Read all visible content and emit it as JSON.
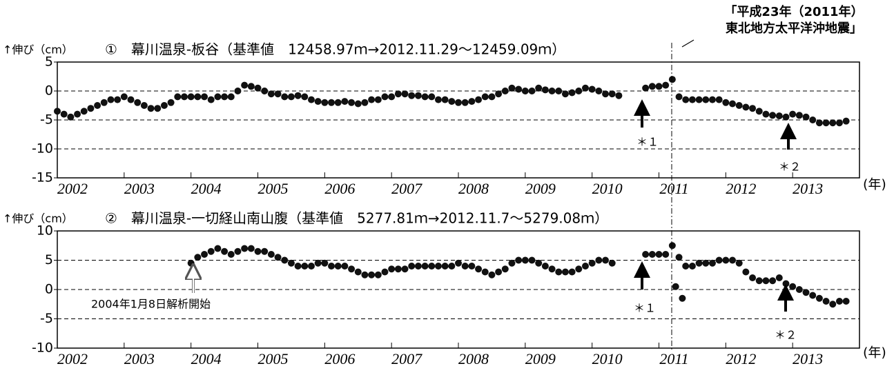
{
  "chart_data": [
    {
      "type": "scatter",
      "title": "①　幕川温泉-板谷（基準値　12458.97ｍ→2012.11.29～12459.09ｍ）",
      "y_label": "↑伸び（cm）",
      "x_label": "(年)",
      "annotations": [
        "＊１",
        "＊２",
        "「平成23年（2011年）",
        "東北地方太平洋沖地震」"
      ],
      "color": "#111111",
      "grid": true,
      "xlim": [
        2002,
        2014
      ],
      "ylim": [
        -15,
        5
      ],
      "xticks": [
        2002,
        2003,
        2004,
        2005,
        2006,
        2007,
        2008,
        2009,
        2010,
        2011,
        2012,
        2013
      ],
      "yticks": [
        -15,
        -10,
        -5,
        0,
        5
      ],
      "x": [
        2002.0,
        2002.1,
        2002.2,
        2002.3,
        2002.4,
        2002.5,
        2002.6,
        2002.7,
        2002.8,
        2002.9,
        2003.0,
        2003.1,
        2003.2,
        2003.3,
        2003.4,
        2003.5,
        2003.6,
        2003.7,
        2003.8,
        2003.9,
        2004.0,
        2004.1,
        2004.2,
        2004.3,
        2004.4,
        2004.5,
        2004.6,
        2004.7,
        2004.8,
        2004.9,
        2005.0,
        2005.1,
        2005.2,
        2005.3,
        2005.4,
        2005.5,
        2005.6,
        2005.7,
        2005.8,
        2005.9,
        2006.0,
        2006.1,
        2006.2,
        2006.3,
        2006.4,
        2006.5,
        2006.6,
        2006.7,
        2006.8,
        2006.9,
        2007.0,
        2007.1,
        2007.2,
        2007.3,
        2007.4,
        2007.5,
        2007.6,
        2007.7,
        2007.8,
        2007.9,
        2008.0,
        2008.1,
        2008.2,
        2008.3,
        2008.4,
        2008.5,
        2008.6,
        2008.7,
        2008.8,
        2008.9,
        2009.0,
        2009.1,
        2009.2,
        2009.3,
        2009.4,
        2009.5,
        2009.6,
        2009.7,
        2009.8,
        2009.9,
        2010.0,
        2010.1,
        2010.2,
        2010.3,
        2010.4,
        2010.8,
        2010.9,
        2011.0,
        2011.1,
        2011.2,
        2011.3,
        2011.4,
        2011.5,
        2011.6,
        2011.7,
        2011.8,
        2011.9,
        2012.0,
        2012.1,
        2012.2,
        2012.3,
        2012.4,
        2012.5,
        2012.6,
        2012.7,
        2012.8,
        2012.9,
        2013.0,
        2013.1,
        2013.2,
        2013.3,
        2013.4,
        2013.5,
        2013.6,
        2013.7,
        2013.8
      ],
      "values": [
        -3.5,
        -4,
        -4.5,
        -4,
        -3.5,
        -3,
        -2.5,
        -2,
        -1.5,
        -1.5,
        -1,
        -1.5,
        -2,
        -2.5,
        -3,
        -3,
        -2.5,
        -2,
        -1,
        -1,
        -1,
        -1,
        -1,
        -1.5,
        -1,
        -1,
        -1,
        0,
        1,
        0.8,
        0.5,
        0,
        -0.5,
        -0.5,
        -1,
        -1,
        -0.8,
        -1,
        -1.5,
        -1.8,
        -2,
        -2,
        -2,
        -1.8,
        -2,
        -2.2,
        -2,
        -1.5,
        -1.5,
        -1,
        -1,
        -0.5,
        -0.5,
        -0.8,
        -0.8,
        -1,
        -1,
        -1.5,
        -1.5,
        -1.8,
        -2,
        -2,
        -1.8,
        -1.5,
        -1,
        -1,
        -0.5,
        0,
        0.5,
        0.3,
        0,
        0,
        0.5,
        0.2,
        0,
        0,
        -0.5,
        -0.3,
        0,
        0.5,
        0.3,
        0,
        -0.5,
        -0.5,
        -0.8,
        0.5,
        0.8,
        0.8,
        1,
        2,
        -1,
        -1.5,
        -1.5,
        -1.5,
        -1.5,
        -1.5,
        -1.5,
        -2,
        -2.2,
        -2.5,
        -2.8,
        -3,
        -3.5,
        -4,
        -4.2,
        -4.3,
        -4.5,
        -4,
        -4.2,
        -4.5,
        -5,
        -5.5,
        -5.5,
        -5.5,
        -5.5,
        -5.2
      ]
    },
    {
      "type": "scatter",
      "title": "②　幕川温泉-一切経山南山腹（基準値　5277.81ｍ→2012.11.7～5279.08ｍ）",
      "y_label": "↑伸び（cm）",
      "x_label": "(年)",
      "annotations": [
        "＊１",
        "＊２",
        "2004年1月8日解析開始"
      ],
      "color": "#111111",
      "grid": true,
      "xlim": [
        2002,
        2014
      ],
      "ylim": [
        -10,
        10
      ],
      "xticks": [
        2002,
        2003,
        2004,
        2005,
        2006,
        2007,
        2008,
        2009,
        2010,
        2011,
        2012,
        2013
      ],
      "yticks": [
        -10,
        -5,
        0,
        5,
        10
      ],
      "x": [
        2004.0,
        2004.1,
        2004.2,
        2004.3,
        2004.4,
        2004.5,
        2004.6,
        2004.7,
        2004.8,
        2004.9,
        2005.0,
        2005.1,
        2005.2,
        2005.3,
        2005.4,
        2005.5,
        2005.6,
        2005.7,
        2005.8,
        2005.9,
        2006.0,
        2006.1,
        2006.2,
        2006.3,
        2006.4,
        2006.5,
        2006.6,
        2006.7,
        2006.8,
        2006.9,
        2007.0,
        2007.1,
        2007.2,
        2007.3,
        2007.4,
        2007.5,
        2007.6,
        2007.7,
        2007.8,
        2007.9,
        2008.0,
        2008.1,
        2008.2,
        2008.3,
        2008.4,
        2008.5,
        2008.6,
        2008.7,
        2008.8,
        2008.9,
        2009.0,
        2009.1,
        2009.2,
        2009.3,
        2009.4,
        2009.5,
        2009.6,
        2009.7,
        2009.8,
        2009.9,
        2010.0,
        2010.1,
        2010.2,
        2010.3,
        2010.8,
        2010.9,
        2011.0,
        2011.1,
        2011.2,
        2011.25,
        2011.3,
        2011.35,
        2011.4,
        2011.5,
        2011.6,
        2011.7,
        2011.8,
        2011.9,
        2012.0,
        2012.1,
        2012.2,
        2012.3,
        2012.4,
        2012.5,
        2012.6,
        2012.7,
        2012.8,
        2012.9,
        2013.0,
        2013.1,
        2013.2,
        2013.3,
        2013.4,
        2013.5,
        2013.6,
        2013.7,
        2013.8
      ],
      "values": [
        4.5,
        5.5,
        6,
        6.5,
        7,
        6.5,
        6,
        6.5,
        7,
        7,
        6.5,
        6.5,
        6,
        5.5,
        5,
        4.5,
        4,
        4,
        4,
        4.5,
        4.5,
        4,
        4,
        4,
        3.5,
        3,
        2.5,
        2.5,
        2.5,
        3,
        3.5,
        3.5,
        3.5,
        4,
        4,
        4,
        4,
        4,
        4,
        4,
        4.5,
        4,
        4,
        3.5,
        3,
        2.5,
        3,
        3.5,
        4.5,
        5,
        5,
        5,
        4.5,
        4,
        3.5,
        3,
        3,
        3,
        3.5,
        4,
        4.5,
        5,
        5,
        4.5,
        6,
        6,
        6,
        6,
        7.5,
        0.5,
        5.5,
        -1.5,
        4,
        4,
        4.5,
        4.5,
        4.5,
        5,
        5,
        5,
        4.5,
        3,
        2,
        1.5,
        1.5,
        1.5,
        2,
        1,
        0.5,
        0,
        -0.5,
        -1,
        -1.5,
        -2,
        -2.5,
        -2,
        -2
      ]
    }
  ]
}
